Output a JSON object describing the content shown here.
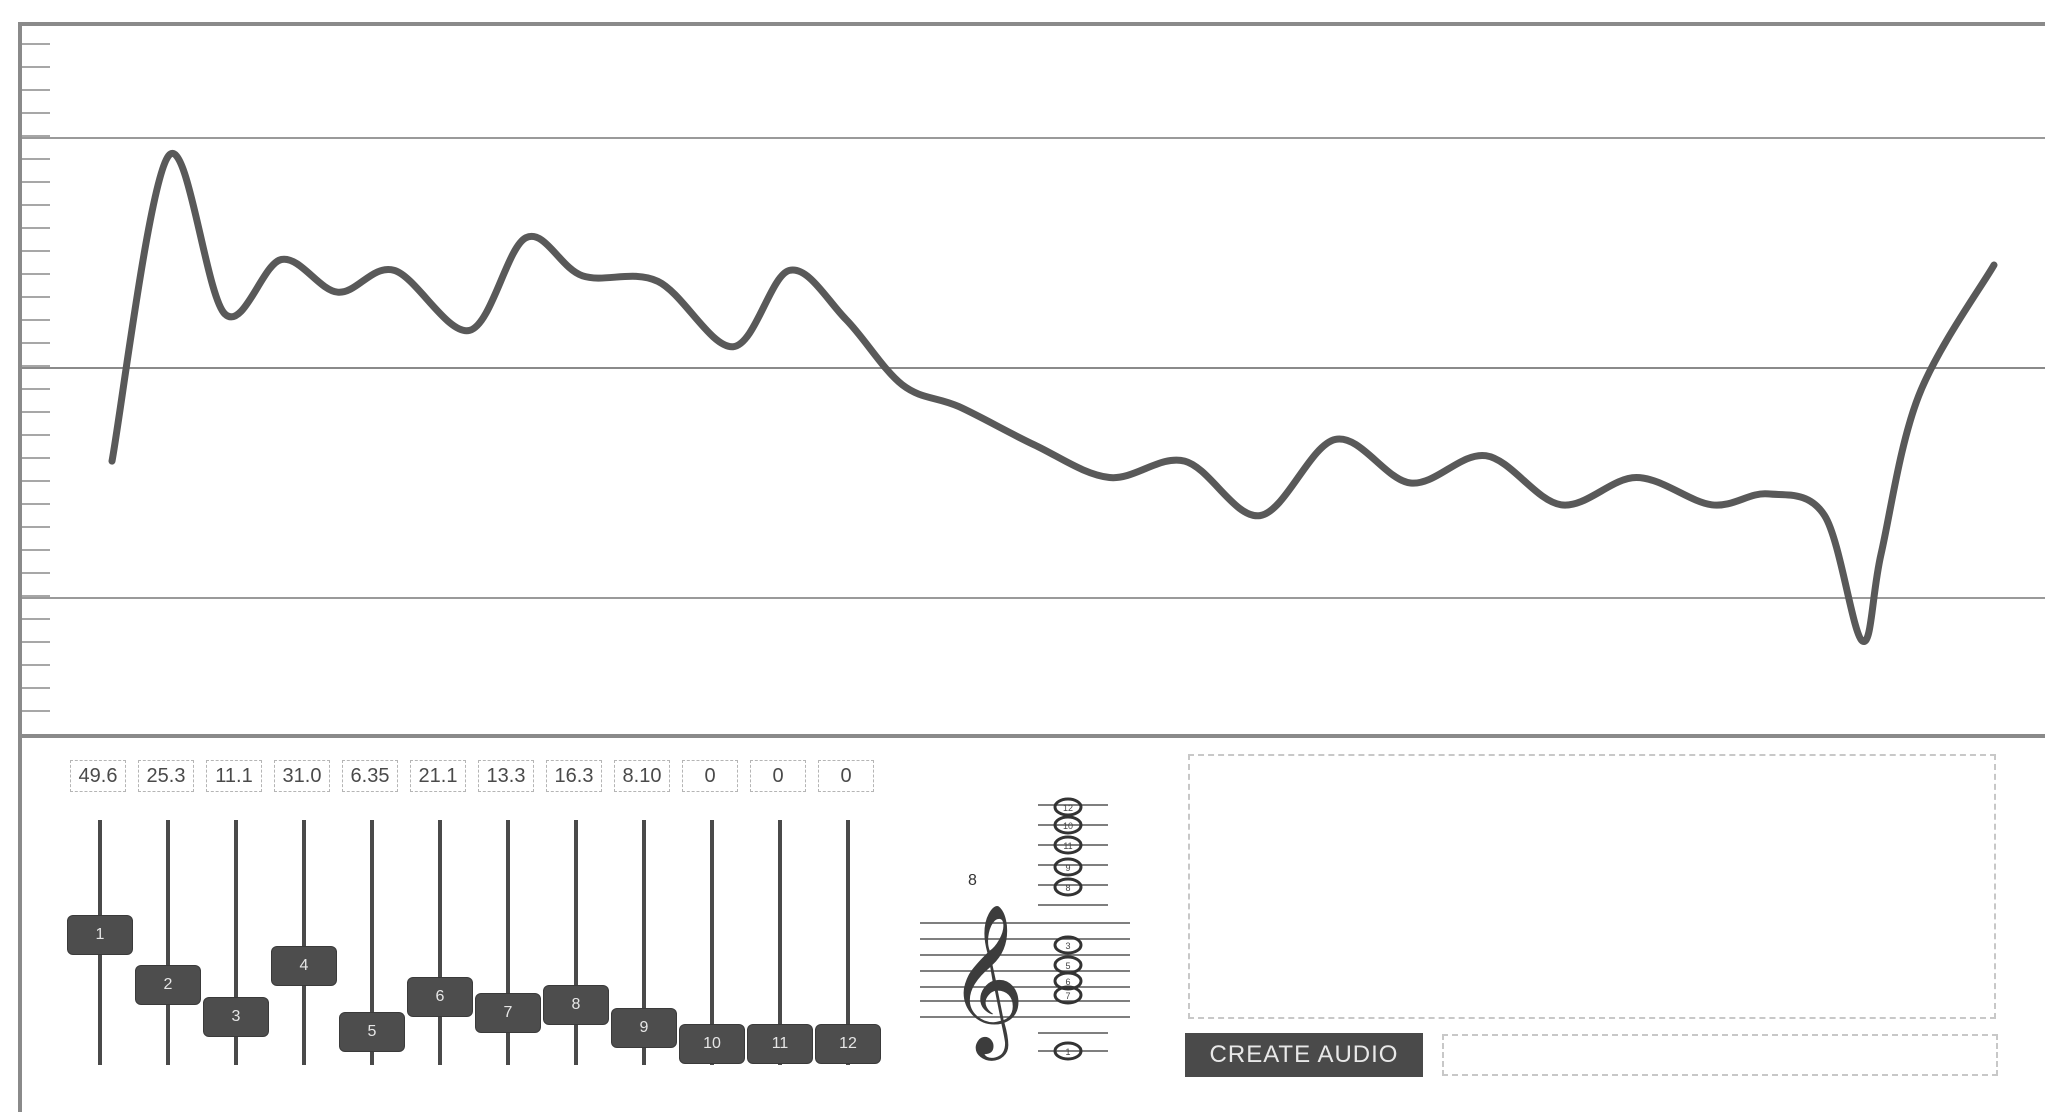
{
  "waveform": {
    "color": "#595959",
    "points": [
      [
        0.0,
        0.33
      ],
      [
        0.03,
        0.89
      ],
      [
        0.06,
        0.6
      ],
      [
        0.09,
        0.7
      ],
      [
        0.12,
        0.64
      ],
      [
        0.15,
        0.68
      ],
      [
        0.19,
        0.57
      ],
      [
        0.22,
        0.74
      ],
      [
        0.25,
        0.67
      ],
      [
        0.29,
        0.66
      ],
      [
        0.33,
        0.54
      ],
      [
        0.36,
        0.68
      ],
      [
        0.39,
        0.59
      ],
      [
        0.42,
        0.47
      ],
      [
        0.45,
        0.43
      ],
      [
        0.49,
        0.36
      ],
      [
        0.53,
        0.3
      ],
      [
        0.57,
        0.33
      ],
      [
        0.61,
        0.23
      ],
      [
        0.65,
        0.37
      ],
      [
        0.69,
        0.29
      ],
      [
        0.73,
        0.34
      ],
      [
        0.77,
        0.25
      ],
      [
        0.81,
        0.3
      ],
      [
        0.85,
        0.25
      ],
      [
        0.88,
        0.27
      ],
      [
        0.91,
        0.23
      ],
      [
        0.93,
        0.0
      ],
      [
        0.94,
        0.16
      ],
      [
        0.96,
        0.45
      ],
      [
        1.0,
        0.69
      ]
    ]
  },
  "harmonics": [
    {
      "number": "1",
      "value": "49.6",
      "level": 0.53
    },
    {
      "number": "2",
      "value": "25.3",
      "level": 0.29
    },
    {
      "number": "3",
      "value": "11.1",
      "level": 0.13
    },
    {
      "number": "4",
      "value": "31.0",
      "level": 0.38
    },
    {
      "number": "5",
      "value": "6.35",
      "level": 0.06
    },
    {
      "number": "6",
      "value": "21.1",
      "level": 0.23
    },
    {
      "number": "7",
      "value": "13.3",
      "level": 0.15
    },
    {
      "number": "8",
      "value": "16.3",
      "level": 0.19
    },
    {
      "number": "9",
      "value": "8.10",
      "level": 0.08
    },
    {
      "number": "10",
      "value": "0",
      "level": 0.0
    },
    {
      "number": "11",
      "value": "0",
      "level": 0.0
    },
    {
      "number": "12",
      "value": "0",
      "level": 0.0
    }
  ],
  "notation": {
    "octave_marker": "8",
    "note_labels": [
      "12",
      "10",
      "11",
      "9",
      "8",
      "3",
      "5",
      "6",
      "7",
      "1"
    ]
  },
  "controls": {
    "create_audio_label": "CREATE AUDIO",
    "status_value": ""
  }
}
